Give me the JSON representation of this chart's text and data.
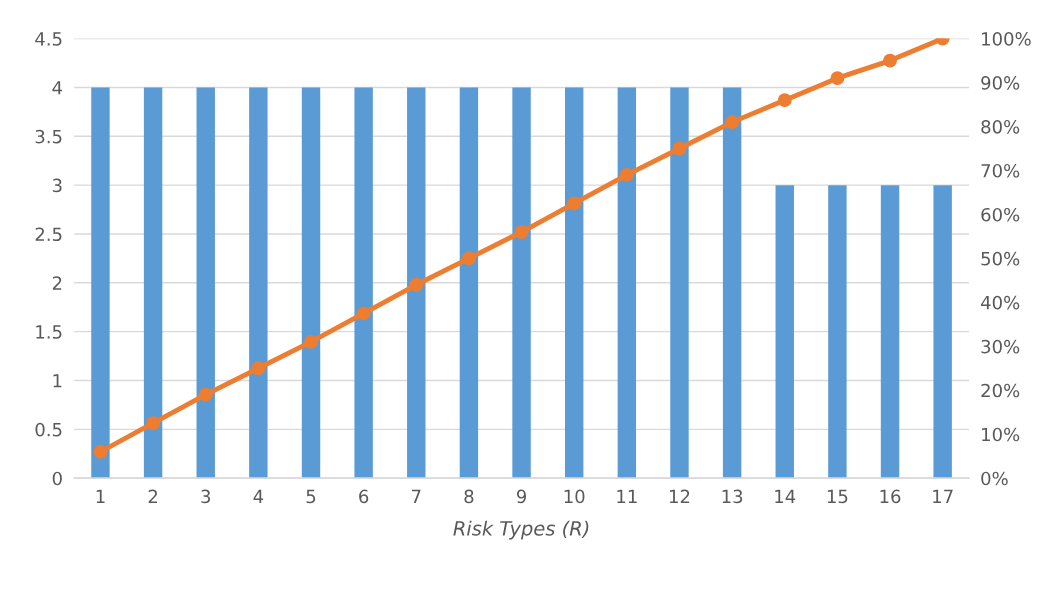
{
  "chart_data": {
    "type": "bar",
    "xlabel": "Risk Types (R)",
    "categories": [
      "1",
      "2",
      "3",
      "4",
      "5",
      "6",
      "7",
      "8",
      "9",
      "10",
      "11",
      "12",
      "13",
      "14",
      "15",
      "16",
      "17"
    ],
    "series": [
      {
        "color": "#5b9bd5",
        "values": [
          4,
          4,
          4,
          4,
          4,
          4,
          4,
          4,
          4,
          4,
          4,
          4,
          4,
          3,
          3,
          3,
          3
        ]
      },
      {
        "type": "line",
        "axis": "y2",
        "color": "#ed7d31",
        "marker": "circle",
        "values": [
          6,
          12.5,
          19,
          25,
          31,
          37.5,
          44,
          50,
          56,
          62.5,
          69,
          75,
          81,
          86,
          91,
          95,
          100
        ]
      }
    ],
    "ylim": [
      0,
      4.5
    ],
    "yticks": [
      0,
      0.5,
      1,
      1.5,
      2,
      2.5,
      3,
      3.5,
      4,
      4.5
    ],
    "y2lim": [
      0,
      100
    ],
    "y2ticks": [
      {
        "value": 0,
        "label": "0%"
      },
      {
        "value": 10,
        "label": "10%"
      },
      {
        "value": 20,
        "label": "20%"
      },
      {
        "value": 30,
        "label": "30%"
      },
      {
        "value": 40,
        "label": "40%"
      },
      {
        "value": 50,
        "label": "50%"
      },
      {
        "value": 60,
        "label": "60%"
      },
      {
        "value": 70,
        "label": "70%"
      },
      {
        "value": 80,
        "label": "80%"
      },
      {
        "value": 90,
        "label": "90%"
      },
      {
        "value": 100,
        "label": "100%"
      }
    ],
    "grid": "y"
  }
}
